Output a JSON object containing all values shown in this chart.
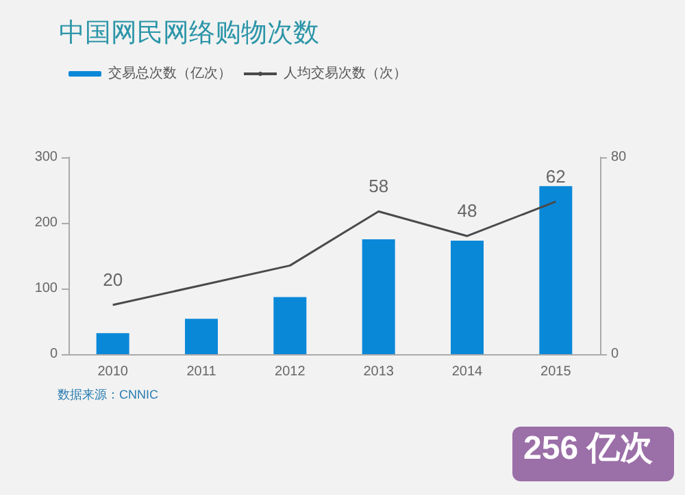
{
  "chart_data": {
    "type": "bar",
    "title": "中国网民网络购物次数",
    "categories": [
      "2010",
      "2011",
      "2012",
      "2013",
      "2014",
      "2015"
    ],
    "series": [
      {
        "name": "交易总次数（亿次）",
        "color": "#0a88d8",
        "values": [
          32,
          54,
          87,
          175,
          173,
          256
        ]
      },
      {
        "name": "人均交易次数（次）",
        "type": "line",
        "axis": "y2",
        "color": "#4a4a4a",
        "values": [
          20,
          28,
          36,
          58,
          48,
          62
        ],
        "value_labels": [
          "20",
          null,
          null,
          "58",
          "48",
          "62"
        ]
      }
    ],
    "ylim": [
      0,
      300
    ],
    "yticks": [
      0,
      100,
      200,
      300
    ],
    "y2lim": [
      0,
      80
    ],
    "y2ticks": [
      0,
      80
    ],
    "grid": false,
    "legend": "top left",
    "marker": "none",
    "annotations": [
      "数据来源：CNNIC",
      "256 亿次"
    ]
  }
}
